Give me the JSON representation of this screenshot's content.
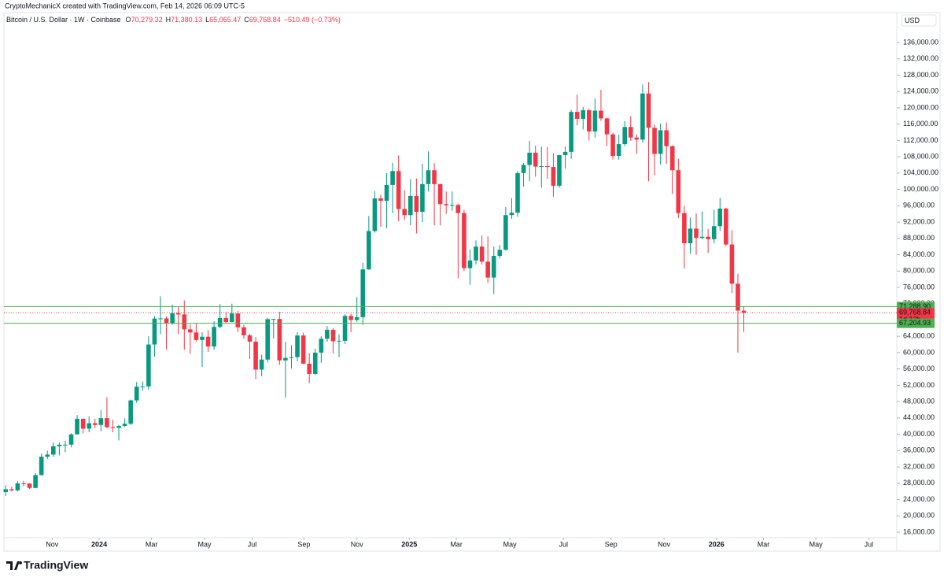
{
  "header": {
    "credit": "CryptoMechanicX created with TradingView.com, Feb 14, 2026 06:09 UTC-5",
    "brand": "TradingView"
  },
  "chart_data": {
    "type": "candlestick",
    "legend": {
      "symbol": "Bitcoin / U.S. Dollar · 1W · Coinbase",
      "ohlc": [
        {
          "key": "O",
          "value": "70,279.32"
        },
        {
          "key": "H",
          "value": "71,380.13"
        },
        {
          "key": "L",
          "value": "65,065.47"
        },
        {
          "key": "C",
          "value": "69,768.84"
        }
      ],
      "change": "−510.49 (−0.73%)"
    },
    "currency": "USD",
    "up_color": "#089981",
    "down_color": "#f23645",
    "open": [
      25840,
      26530,
      26250,
      27970,
      27920,
      26850,
      30000,
      34500,
      35020,
      37060,
      37440,
      37450,
      39970,
      43790,
      41380,
      42700,
      42280,
      43950,
      41730,
      41570,
      42030,
      42580,
      48300,
      51660,
      51730,
      62000,
      68350,
      68390,
      67200,
      69660,
      69360,
      65700,
      64950,
      63100,
      63900,
      61500,
      66300,
      68500,
      67500,
      69600,
      66200,
      64250,
      62700,
      55850,
      58300,
      68200,
      68250,
      58100,
      58700,
      58900,
      64200,
      57300,
      54800,
      60000,
      63400,
      65600,
      62800,
      62900,
      69000,
      68000,
      68700,
      80400,
      89800,
      97800,
      97200,
      101100,
      104500,
      95200,
      93700,
      98400,
      94500,
      101300,
      104700,
      101300,
      96400,
      96100,
      96200,
      94200,
      80700,
      82600,
      86000,
      82300,
      78400,
      83700,
      85200,
      93700,
      94300,
      104000,
      106000,
      109000,
      105600,
      105700,
      105500,
      100900,
      108400,
      109200,
      119000,
      117300,
      119400,
      114200,
      119300,
      117400,
      113500,
      108200,
      111100,
      115300,
      112700,
      112200,
      123500,
      115100,
      108700,
      114500,
      110600,
      104700,
      94200,
      86800,
      90400,
      88100,
      88400,
      87800,
      91000,
      95300,
      86500,
      76900,
      70279.32
    ],
    "high": [
      27480,
      27160,
      28580,
      28600,
      27990,
      30500,
      35280,
      35980,
      38000,
      37970,
      38440,
      40250,
      44700,
      43850,
      44380,
      43800,
      45900,
      49050,
      43550,
      42300,
      43850,
      48500,
      52800,
      52900,
      64000,
      69000,
      73800,
      68900,
      71800,
      71300,
      72800,
      66900,
      67250,
      65000,
      65500,
      67700,
      71900,
      70000,
      72000,
      70200,
      66800,
      64600,
      63800,
      59500,
      68500,
      68300,
      70000,
      62700,
      61800,
      65000,
      64900,
      59900,
      61000,
      64000,
      66500,
      66000,
      64500,
      69400,
      69500,
      73600,
      82000,
      93500,
      99600,
      98700,
      104000,
      106500,
      108300,
      99800,
      102500,
      102700,
      106300,
      109300,
      106400,
      101400,
      99500,
      99500,
      96500,
      95000,
      85300,
      87500,
      88700,
      88500,
      86000,
      86400,
      95700,
      97900,
      104500,
      106500,
      111900,
      110700,
      110500,
      110400,
      108900,
      108500,
      110500,
      119500,
      123200,
      120200,
      119800,
      122300,
      124400,
      117600,
      113800,
      113400,
      116700,
      117900,
      113400,
      125700,
      126300,
      115900,
      116100,
      116400,
      110800,
      107500,
      96000,
      93100,
      94100,
      94600,
      90300,
      95000,
      97900,
      95500,
      90000,
      79300,
      71380.13
    ],
    "low": [
      24900,
      26000,
      26000,
      27200,
      26540,
      26800,
      29900,
      33900,
      34500,
      34800,
      35600,
      36800,
      39970,
      40200,
      40500,
      41500,
      40700,
      41500,
      40500,
      38500,
      41800,
      42250,
      47700,
      50600,
      50900,
      59000,
      64500,
      60770,
      66800,
      64500,
      60700,
      59700,
      62800,
      56500,
      60200,
      60700,
      66000,
      67100,
      67500,
      65000,
      63400,
      58400,
      53500,
      54200,
      57600,
      63500,
      57000,
      49000,
      56100,
      57900,
      57200,
      52500,
      54500,
      57500,
      62700,
      59800,
      58900,
      62100,
      65000,
      67500,
      66800,
      80300,
      89400,
      90800,
      90500,
      94200,
      92200,
      92500,
      91200,
      89200,
      92000,
      99500,
      91200,
      91200,
      94000,
      94800,
      78200,
      80000,
      76600,
      81600,
      81600,
      77100,
      74400,
      83100,
      85000,
      92800,
      93300,
      100700,
      102000,
      103100,
      100400,
      102600,
      98200,
      100400,
      105100,
      107500,
      115700,
      114700,
      112000,
      112700,
      116800,
      110600,
      107300,
      107300,
      110600,
      111900,
      108700,
      111500,
      102000,
      103500,
      106100,
      106300,
      98900,
      93000,
      80600,
      84200,
      84000,
      87800,
      84400,
      86800,
      89800,
      86100,
      74600,
      60000,
      65065.47
    ],
    "close": [
      26530,
      26250,
      27970,
      27920,
      26850,
      30000,
      34500,
      35020,
      37060,
      37440,
      37450,
      39970,
      43790,
      41380,
      42700,
      42280,
      43950,
      41730,
      41570,
      42030,
      42580,
      48300,
      51660,
      51730,
      62000,
      68350,
      68390,
      67200,
      69660,
      69360,
      65700,
      64950,
      63100,
      63900,
      61500,
      66300,
      68500,
      67500,
      69600,
      66200,
      64250,
      62700,
      55850,
      58300,
      68200,
      68250,
      58100,
      58700,
      58900,
      64200,
      57300,
      54800,
      60000,
      63400,
      65600,
      62800,
      62900,
      69000,
      68000,
      68700,
      80400,
      89800,
      97800,
      97200,
      101100,
      104500,
      95200,
      93700,
      98400,
      94500,
      101300,
      104700,
      101300,
      96400,
      96100,
      96200,
      94200,
      80700,
      82600,
      86000,
      82300,
      78400,
      83700,
      85200,
      93700,
      94300,
      104000,
      106000,
      109000,
      105600,
      105700,
      105500,
      100900,
      108400,
      109200,
      119000,
      117300,
      119400,
      114200,
      119300,
      117400,
      113500,
      108200,
      111100,
      115300,
      112700,
      112200,
      123500,
      115100,
      108700,
      114500,
      110600,
      104700,
      94200,
      86800,
      90400,
      88100,
      88400,
      87800,
      91000,
      95300,
      86500,
      76900,
      70300,
      69768.84
    ],
    "xlim": [
      -0.3,
      149.7
    ],
    "xticks": [
      {
        "value": 7.8,
        "label": "Nov"
      },
      {
        "value": 15.7,
        "label": "2024"
      },
      {
        "value": 24.5,
        "label": "Mar"
      },
      {
        "value": 33.4,
        "label": "May"
      },
      {
        "value": 41.4,
        "label": "Jul"
      },
      {
        "value": 50.1,
        "label": "Sep"
      },
      {
        "value": 59.0,
        "label": "Nov"
      },
      {
        "value": 67.8,
        "label": "2025"
      },
      {
        "value": 75.7,
        "label": "Mar"
      },
      {
        "value": 84.7,
        "label": "May"
      },
      {
        "value": 93.7,
        "label": "Jul"
      },
      {
        "value": 101.7,
        "label": "Sep"
      },
      {
        "value": 110.6,
        "label": "Nov"
      },
      {
        "value": 119.4,
        "label": "2026"
      },
      {
        "value": 127.3,
        "label": "Mar"
      },
      {
        "value": 136.1,
        "label": "May"
      },
      {
        "value": 145.0,
        "label": "Jul"
      }
    ],
    "ylim": [
      14650,
      143330
    ],
    "yticks": [
      {
        "value": 16000,
        "label": "16,000.00"
      },
      {
        "value": 20000,
        "label": "20,000.00"
      },
      {
        "value": 24000,
        "label": "24,000.00"
      },
      {
        "value": 28000,
        "label": "28,000.00"
      },
      {
        "value": 32000,
        "label": "32,000.00"
      },
      {
        "value": 36000,
        "label": "36,000.00"
      },
      {
        "value": 40000,
        "label": "40,000.00"
      },
      {
        "value": 44000,
        "label": "44,000.00"
      },
      {
        "value": 48000,
        "label": "48,000.00"
      },
      {
        "value": 52000,
        "label": "52,000.00"
      },
      {
        "value": 56000,
        "label": "56,000.00"
      },
      {
        "value": 60000,
        "label": "60,000.00"
      },
      {
        "value": 64000,
        "label": "64,000.00"
      },
      {
        "value": 68000,
        "label": "68,000.00"
      },
      {
        "value": 72000,
        "label": "72,000.00"
      },
      {
        "value": 76000,
        "label": "76,000.00"
      },
      {
        "value": 80000,
        "label": "80,000.00"
      },
      {
        "value": 84000,
        "label": "84,000.00"
      },
      {
        "value": 88000,
        "label": "88,000.00"
      },
      {
        "value": 92000,
        "label": "92,000.00"
      },
      {
        "value": 96000,
        "label": "96,000.00"
      },
      {
        "value": 100000,
        "label": "100,000.00"
      },
      {
        "value": 104000,
        "label": "104,000.00"
      },
      {
        "value": 108000,
        "label": "108,000.00"
      },
      {
        "value": 112000,
        "label": "112,000.00"
      },
      {
        "value": 116000,
        "label": "116,000.00"
      },
      {
        "value": 120000,
        "label": "120,000.00"
      },
      {
        "value": 124000,
        "label": "124,000.00"
      },
      {
        "value": 128000,
        "label": "128,000.00"
      },
      {
        "value": 132000,
        "label": "132,000.00"
      },
      {
        "value": 136000,
        "label": "136,000.00"
      }
    ],
    "hlines": [
      {
        "value": 71288.9,
        "label": "71,288.90",
        "color": "#4caf50",
        "style": "solid"
      },
      {
        "value": 67204.93,
        "label": "67,204.93",
        "color": "#4caf50",
        "style": "solid"
      },
      {
        "value": 69768.84,
        "label": "69,768.84",
        "color": "#f23645",
        "style": "dotted",
        "countdown": "1d 13h"
      }
    ]
  }
}
